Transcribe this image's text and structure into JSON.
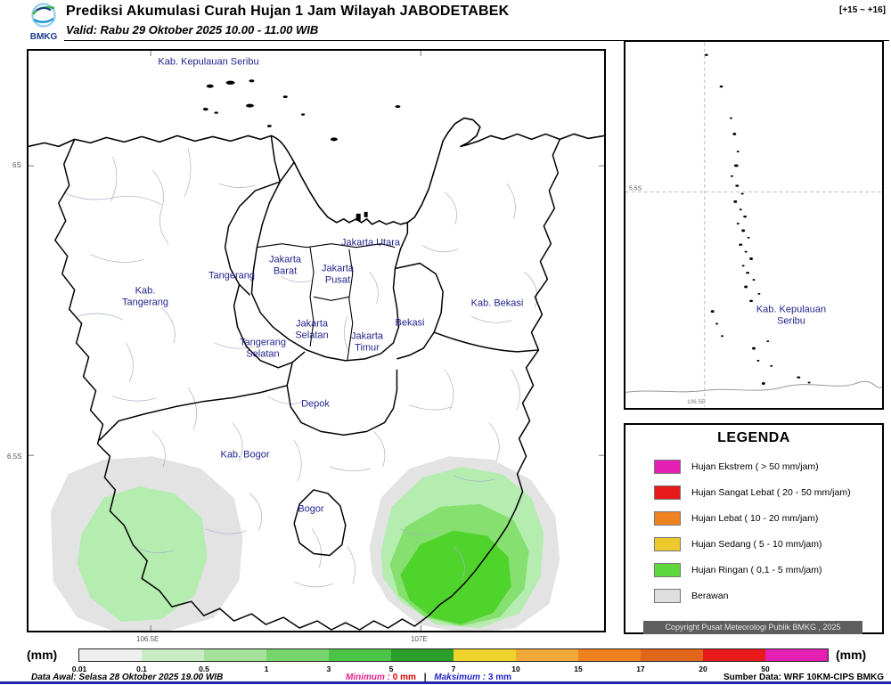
{
  "header": {
    "logo_text": "BMKG",
    "title": "Prediksi Akumulasi Curah Hujan 1 Jam Wilayah JABODETABEK",
    "valid": "Valid: Rabu 29 Oktober 2025 10.00 - 11.00 WIB",
    "time_range": "[+15 ~ +16]"
  },
  "map": {
    "labels": {
      "kepulauan_seribu": "Kab. Kepulauan Seribu",
      "jakarta_utara": "Jakarta Utara",
      "jakarta_barat": "Jakarta Barat",
      "jakarta_pusat": "Jakarta Pusat",
      "tangerang": "Tangerang",
      "kab_tangerang": "Kab. Tangerang",
      "kab_bekasi": "Kab. Bekasi",
      "jakarta_selatan": "Jakarta Selatan",
      "bekasi": "Bekasi",
      "jakarta_timur": "Jakarta Timur",
      "tangerang_selatan": "Tangerang Selatan",
      "depok": "Depok",
      "kab_bogor": "Kab. Bogor",
      "bogor": "Bogor"
    },
    "axis": {
      "lat_top": "6S",
      "lat_bottom": "6.5S",
      "lon_left": "106.5E",
      "lon_right": "107E"
    }
  },
  "inset": {
    "label": "Kab. Kepulauan Seribu",
    "lat": "5.5S",
    "lon": "106.5E"
  },
  "legend": {
    "title": "LEGENDA",
    "items": [
      {
        "color": "#e41fb3",
        "label": "Hujan Ekstrem ( > 50 mm/jam)"
      },
      {
        "color": "#e7191b",
        "label": "Hujan Sangat Lebat ( 20 - 50 mm/jam)"
      },
      {
        "color": "#ee8120",
        "label": "Hujan Lebat ( 10 - 20 mm/jam)"
      },
      {
        "color": "#eec92e",
        "label": "Hujan Sedang ( 5 - 10 mm/jam)"
      },
      {
        "color": "#5fd83e",
        "label": "Hujan Ringan ( 0,1 - 5 mm/jam)"
      },
      {
        "color": "#dedede",
        "label": "Berawan"
      }
    ],
    "copyright": "Copyright Pusat Meteorologi Publik BMKG , 2025"
  },
  "scalebar": {
    "unit_left": "(mm)",
    "unit_right": "(mm)",
    "ticks": [
      "0.01",
      "0.1",
      "0.5",
      "1",
      "3",
      "5",
      "7",
      "10",
      "15",
      "17",
      "20",
      "50"
    ],
    "colors": [
      "#efefef",
      "#c9ecc4",
      "#a4e29b",
      "#77d56e",
      "#4cc446",
      "#2b9e2b",
      "#eed32b",
      "#f3a83a",
      "#ee8120",
      "#df661b",
      "#e7191b",
      "#e41fb3"
    ]
  },
  "footer": {
    "data_awal": "Data Awal: Selasa 28 Oktober 2025 19.00 WIB",
    "min_label": "Minimum :",
    "min_value": "0 mm",
    "separator": "|",
    "max_label": "Maksimum :",
    "max_value": "3 mm",
    "source": "Sumber Data: WRF 10KM-CIPS BMKG"
  },
  "colors": {
    "map_label": "#23238E",
    "min_label": "#e0218a",
    "min_value": "#dd0000",
    "max_label": "#2222cc",
    "max_value": "#2222cc",
    "bottom_rule": "#2222aa",
    "rain_light": "#b5ecb0",
    "rain_medium": "#86e070",
    "rain_bright": "#4fd42c",
    "cloud_gray": "#e3e3e3"
  }
}
